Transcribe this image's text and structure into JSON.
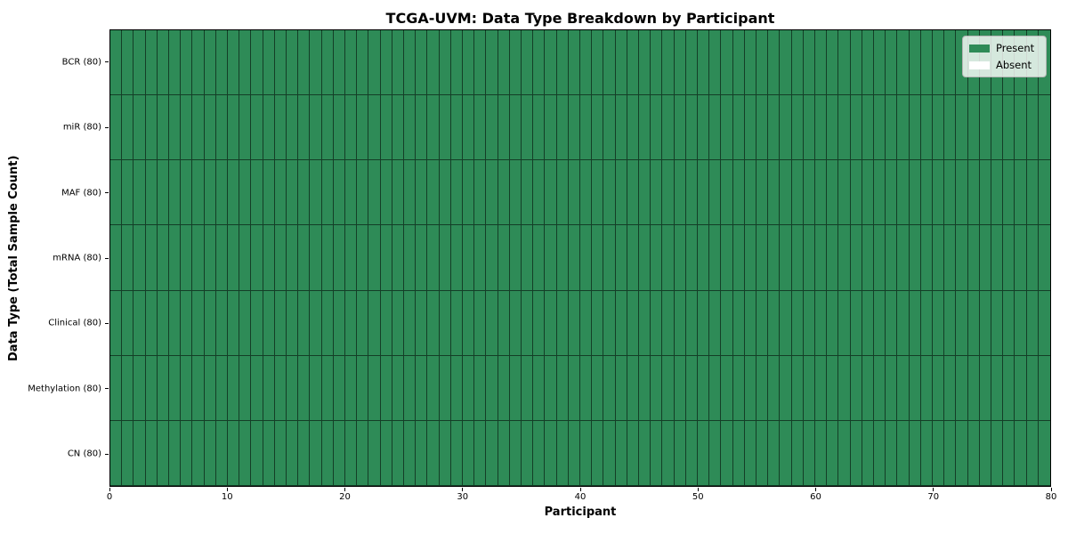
{
  "figure": {
    "title": "TCGA-UVM: Data Type Breakdown by Participant",
    "xlabel": "Participant",
    "ylabel": "Data Type (Total Sample Count)"
  },
  "legend": {
    "position": "upper right",
    "items": [
      {
        "label": "Present",
        "color": "#2e8b57"
      },
      {
        "label": "Absent",
        "color": "#ffffff"
      }
    ]
  },
  "chart_data": {
    "type": "heatmap",
    "title": "TCGA-UVM: Data Type Breakdown by Participant",
    "xlabel": "Participant",
    "ylabel": "Data Type (Total Sample Count)",
    "x_range": [
      0,
      80
    ],
    "x_ticks": [
      0,
      10,
      20,
      30,
      40,
      50,
      60,
      70,
      80
    ],
    "n_participants": 80,
    "rows": [
      {
        "label": "BCR (80)",
        "data_type": "BCR",
        "total_sample_count": 80,
        "present_count": 80,
        "absent_count": 0
      },
      {
        "label": "miR (80)",
        "data_type": "miR",
        "total_sample_count": 80,
        "present_count": 80,
        "absent_count": 0
      },
      {
        "label": "MAF (80)",
        "data_type": "MAF",
        "total_sample_count": 80,
        "present_count": 80,
        "absent_count": 0
      },
      {
        "label": "mRNA (80)",
        "data_type": "mRNA",
        "total_sample_count": 80,
        "present_count": 80,
        "absent_count": 0
      },
      {
        "label": "Clinical (80)",
        "data_type": "Clinical",
        "total_sample_count": 80,
        "present_count": 80,
        "absent_count": 0
      },
      {
        "label": "Methylation (80)",
        "data_type": "Methylation",
        "total_sample_count": 80,
        "present_count": 80,
        "absent_count": 0
      },
      {
        "label": "CN (80)",
        "data_type": "CN",
        "total_sample_count": 80,
        "present_count": 80,
        "absent_count": 0
      }
    ],
    "all_cells_present": true,
    "colors": {
      "present": "#2e8b57",
      "absent": "#ffffff",
      "cell_edge": "rgba(0,0,0,0.55)",
      "spine": "#000000"
    },
    "legend_entries": [
      "Present",
      "Absent"
    ],
    "legend_position": "upper right",
    "grid": "cell-borders"
  }
}
